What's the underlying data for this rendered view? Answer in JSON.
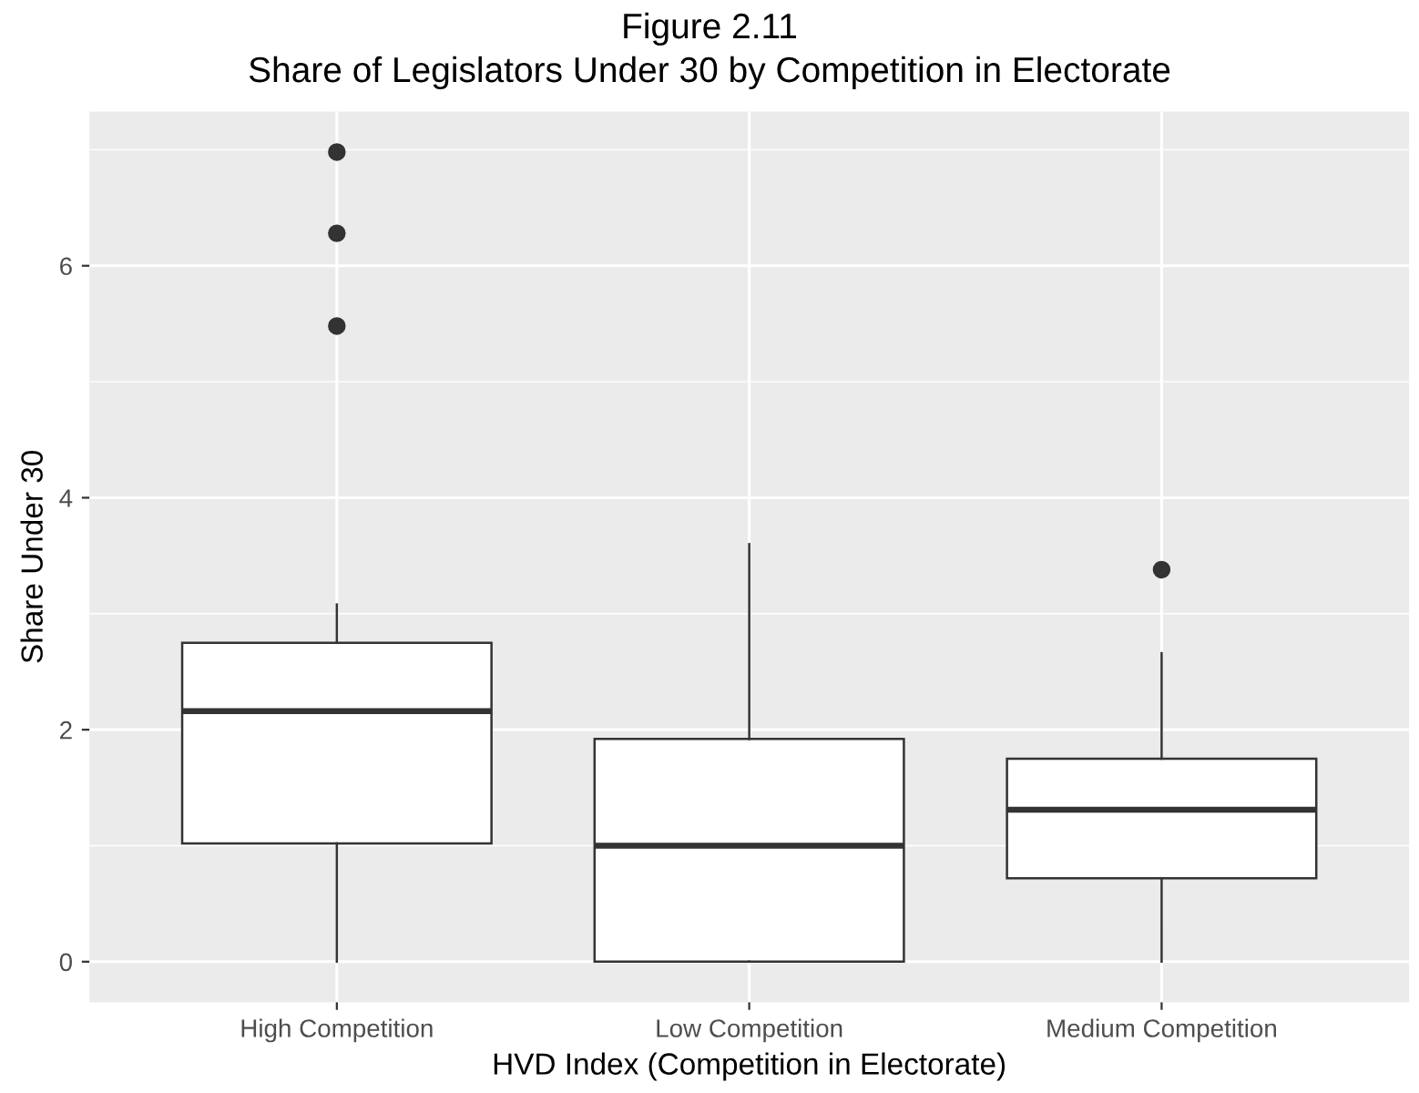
{
  "chart_data": {
    "type": "box",
    "title": "Figure 2.11",
    "subtitle": "Share of Legislators Under 30 by Competition in Electorate",
    "xlabel": "HVD Index (Competition in Electorate)",
    "ylabel": "Share Under 30",
    "categories": [
      "High Competition",
      "Low Competition",
      "Medium Competition"
    ],
    "boxes": [
      {
        "low": 0,
        "q1": 1.02,
        "median": 2.16,
        "q3": 2.75,
        "high": 3.08,
        "outliers": [
          5.48,
          6.28,
          6.98
        ]
      },
      {
        "low": 0,
        "q1": 0,
        "median": 1.0,
        "q3": 1.92,
        "high": 3.6
      },
      {
        "low": 0,
        "q1": 0.72,
        "median": 1.31,
        "q3": 1.75,
        "high": 2.66,
        "outliers": [
          3.38
        ]
      }
    ],
    "ylim": [
      -0.35,
      7.33
    ],
    "yticks": [
      0,
      2,
      4,
      6
    ],
    "grid": true
  }
}
